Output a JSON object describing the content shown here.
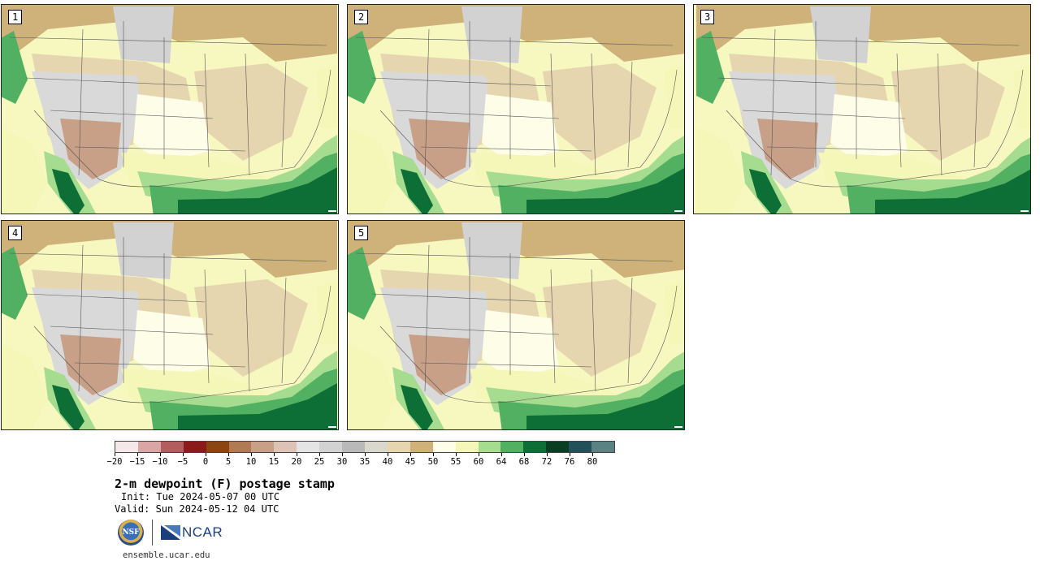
{
  "panels": [
    {
      "label": "1"
    },
    {
      "label": "2"
    },
    {
      "label": "3"
    },
    {
      "label": "4"
    },
    {
      "label": "5"
    }
  ],
  "colorbar": {
    "colors": [
      "#f4e8e8",
      "#d9a5a5",
      "#b35e5e",
      "#8b1a1a",
      "#8b4513",
      "#b07a55",
      "#c8a088",
      "#dcc3b5",
      "#e4e4e4",
      "#d2d2d2",
      "#b9b9b9",
      "#dad8cc",
      "#e6d6b0",
      "#cfb27a",
      "#fdfde8",
      "#f5f7b8",
      "#a6dc90",
      "#52b063",
      "#0d6f36",
      "#0a3d22",
      "#24505a",
      "#5a8282"
    ],
    "labels": [
      "−20",
      "−15",
      "−10",
      "−5",
      "0",
      "5",
      "10",
      "15",
      "20",
      "25",
      "30",
      "35",
      "40",
      "45",
      "50",
      "55",
      "60",
      "64",
      "68",
      "72",
      "76",
      "80"
    ]
  },
  "title": "2-m dewpoint (F) postage stamp",
  "init": "Init: Tue 2024-05-07 00 UTC",
  "valid": "Valid: Sun 2024-05-12 04 UTC",
  "logos": {
    "nsf_text": "NSF",
    "ncar_text": "NCAR"
  },
  "site": "ensemble.ucar.edu"
}
